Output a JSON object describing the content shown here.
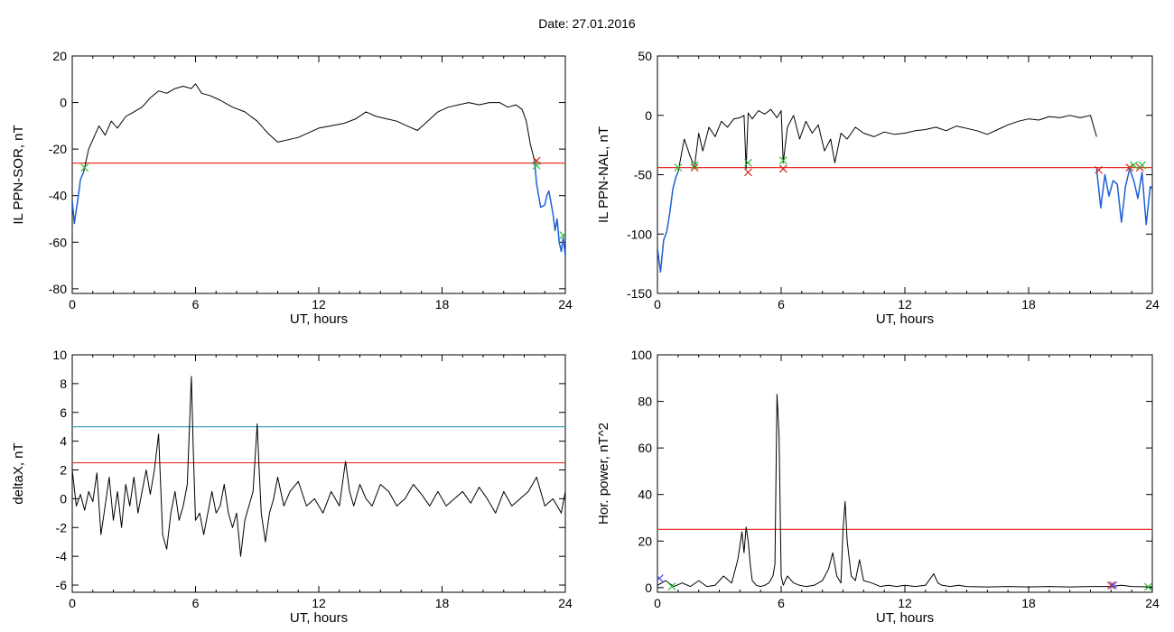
{
  "header": {
    "date_label": "Date:  27.01.2016"
  },
  "colors": {
    "trace": "#000000",
    "red_line": "#e8322a",
    "cyan_line": "#2a9bb0",
    "blue_trace": "#1f5fd6",
    "green_marker": "#2bbf3a",
    "red_marker": "#d4221c",
    "blue_marker": "#4a4ae8"
  },
  "chart_data": [
    {
      "type": "line",
      "ylabel": "IL PPN-SOR, nT",
      "xlabel": "UT, hours",
      "xlim": [
        0,
        24
      ],
      "ylim": [
        -82,
        20
      ],
      "xticks": [
        0,
        6,
        12,
        18,
        24
      ],
      "yticks": [
        20,
        0,
        -20,
        -40,
        -60,
        -80
      ],
      "hlines": [
        {
          "y": -26,
          "color": "red"
        }
      ],
      "series": [
        {
          "color": "black",
          "x": [
            0.55,
            0.8,
            1.0,
            1.3,
            1.6,
            1.9,
            2.2,
            2.6,
            3.0,
            3.4,
            3.8,
            4.2,
            4.6,
            5.0,
            5.4,
            5.8,
            6.0,
            6.3,
            6.7,
            7.2,
            7.8,
            8.4,
            9.0,
            9.5,
            10.0,
            10.5,
            11.0,
            11.5,
            12.0,
            12.6,
            13.2,
            13.8,
            14.3,
            14.8,
            15.3,
            15.8,
            16.3,
            16.8,
            17.3,
            17.8,
            18.3,
            18.8,
            19.3,
            19.8,
            20.3,
            20.8,
            21.2,
            21.6,
            21.9,
            22.1,
            22.3,
            22.5
          ],
          "y": [
            -30,
            -20,
            -16,
            -10,
            -14,
            -8,
            -11,
            -6,
            -4,
            -2,
            2,
            5,
            4,
            6,
            7,
            6,
            8,
            4,
            3,
            1,
            -2,
            -4,
            -8,
            -13,
            -17,
            -16,
            -15,
            -13,
            -11,
            -10,
            -9,
            -7,
            -4,
            -6,
            -7,
            -8,
            -10,
            -12,
            -8,
            -4,
            -2,
            -1,
            0,
            -1,
            0,
            0,
            -2,
            -1,
            -3,
            -8,
            -18,
            -25
          ]
        },
        {
          "color": "blue",
          "x": [
            0,
            0.1,
            0.2,
            0.3,
            0.4,
            0.5,
            0.55
          ],
          "y": [
            -42,
            -52,
            -46,
            -40,
            -33,
            -31,
            -30
          ]
        },
        {
          "color": "blue",
          "x": [
            22.5,
            22.6,
            22.8,
            23.0,
            23.1,
            23.2,
            23.3,
            23.4,
            23.5,
            23.6,
            23.7,
            23.8,
            23.9,
            24.0
          ],
          "y": [
            -25,
            -35,
            -45,
            -44,
            -40,
            -38,
            -43,
            -48,
            -55,
            -50,
            -60,
            -64,
            -58,
            -66
          ]
        }
      ],
      "markers": [
        {
          "x": 0.6,
          "y": -28,
          "symbol": "x",
          "color": "green"
        },
        {
          "x": 22.6,
          "y": -25,
          "symbol": "x",
          "color": "red"
        },
        {
          "x": 22.6,
          "y": -27,
          "symbol": "x",
          "color": "green"
        },
        {
          "x": 23.9,
          "y": -57,
          "symbol": "x",
          "color": "green"
        }
      ]
    },
    {
      "type": "line",
      "ylabel": "IL PPN-NAL, nT",
      "xlabel": "UT, hours",
      "xlim": [
        0,
        24
      ],
      "ylim": [
        -150,
        50
      ],
      "xticks": [
        0,
        6,
        12,
        18,
        24
      ],
      "yticks": [
        50,
        0,
        -50,
        -100,
        -150
      ],
      "hlines": [
        {
          "y": -44,
          "color": "red"
        }
      ],
      "series": [
        {
          "color": "black",
          "x": [
            1.0,
            1.3,
            1.6,
            1.8,
            2.0,
            2.2,
            2.5,
            2.8,
            3.1,
            3.4,
            3.7,
            4.0,
            4.2,
            4.3,
            4.4,
            4.6,
            4.9,
            5.2,
            5.5,
            5.8,
            6.0,
            6.1,
            6.3,
            6.6,
            6.9,
            7.2,
            7.5,
            7.8,
            8.1,
            8.4,
            8.6,
            8.9,
            9.2,
            9.6,
            10.0,
            10.5,
            11.0,
            11.5,
            12.0,
            12.5,
            13.0,
            13.5,
            14.0,
            14.5,
            15.0,
            15.5,
            16.0,
            16.5,
            17.0,
            17.5,
            18.0,
            18.5,
            19.0,
            19.5,
            20.0,
            20.5,
            21.0,
            21.3
          ],
          "y": [
            -48,
            -20,
            -35,
            -43,
            -15,
            -30,
            -10,
            -18,
            -5,
            -10,
            -3,
            -2,
            0,
            -45,
            2,
            -3,
            4,
            1,
            5,
            -2,
            4,
            -40,
            -10,
            0,
            -20,
            -5,
            -15,
            -8,
            -30,
            -20,
            -40,
            -15,
            -20,
            -10,
            -15,
            -18,
            -14,
            -16,
            -15,
            -13,
            -12,
            -10,
            -13,
            -9,
            -11,
            -13,
            -16,
            -12,
            -8,
            -5,
            -3,
            -4,
            -1,
            -2,
            0,
            -2,
            0,
            -18
          ]
        },
        {
          "color": "blue",
          "x": [
            0,
            0.15,
            0.3,
            0.45,
            0.6,
            0.75,
            0.9,
            1.0
          ],
          "y": [
            -112,
            -132,
            -105,
            -98,
            -82,
            -62,
            -52,
            -48
          ]
        },
        {
          "color": "blue",
          "x": [
            21.3,
            21.5,
            21.7,
            21.9,
            22.1,
            22.3,
            22.5,
            22.7,
            22.9,
            23.1,
            23.3,
            23.5,
            23.7,
            23.9,
            24.0
          ],
          "y": [
            -45,
            -78,
            -50,
            -68,
            -55,
            -58,
            -90,
            -60,
            -45,
            -55,
            -70,
            -48,
            -92,
            -60,
            -62
          ]
        }
      ],
      "markers": [
        {
          "x": 1.0,
          "y": -44,
          "symbol": "x",
          "color": "green"
        },
        {
          "x": 1.8,
          "y": -44,
          "symbol": "x",
          "color": "red"
        },
        {
          "x": 1.8,
          "y": -42,
          "symbol": "x",
          "color": "green"
        },
        {
          "x": 4.4,
          "y": -48,
          "symbol": "x",
          "color": "red"
        },
        {
          "x": 4.4,
          "y": -40,
          "symbol": "x",
          "color": "green"
        },
        {
          "x": 6.1,
          "y": -45,
          "symbol": "x",
          "color": "red"
        },
        {
          "x": 6.1,
          "y": -38,
          "symbol": "x",
          "color": "green"
        },
        {
          "x": 21.4,
          "y": -46,
          "symbol": "x",
          "color": "red"
        },
        {
          "x": 22.9,
          "y": -44,
          "symbol": "x",
          "color": "red"
        },
        {
          "x": 23.1,
          "y": -42,
          "symbol": "x",
          "color": "green"
        },
        {
          "x": 23.4,
          "y": -44,
          "symbol": "x",
          "color": "red"
        },
        {
          "x": 23.5,
          "y": -42,
          "symbol": "x",
          "color": "green"
        }
      ]
    },
    {
      "type": "line",
      "ylabel": "deltaX, nT",
      "xlabel": "UT, hours",
      "xlim": [
        0,
        24
      ],
      "ylim": [
        -6.5,
        10
      ],
      "xticks": [
        0,
        6,
        12,
        18,
        24
      ],
      "yticks": [
        10,
        8,
        6,
        4,
        2,
        0,
        -2,
        -4,
        -6
      ],
      "hlines": [
        {
          "y": 5,
          "color": "cyan"
        },
        {
          "y": 2.5,
          "color": "red"
        }
      ],
      "series": [
        {
          "color": "black",
          "x": [
            0,
            0.2,
            0.4,
            0.6,
            0.8,
            1.0,
            1.2,
            1.4,
            1.6,
            1.8,
            2.0,
            2.2,
            2.4,
            2.6,
            2.8,
            3.0,
            3.2,
            3.4,
            3.6,
            3.8,
            4.0,
            4.2,
            4.4,
            4.6,
            4.8,
            5.0,
            5.2,
            5.4,
            5.6,
            5.8,
            5.9,
            6.0,
            6.2,
            6.4,
            6.6,
            6.8,
            7.0,
            7.2,
            7.4,
            7.6,
            7.8,
            8.0,
            8.2,
            8.4,
            8.6,
            8.8,
            9.0,
            9.1,
            9.2,
            9.4,
            9.6,
            9.8,
            10.0,
            10.3,
            10.6,
            11.0,
            11.4,
            11.8,
            12.2,
            12.6,
            13.0,
            13.3,
            13.5,
            13.7,
            14.0,
            14.3,
            14.6,
            15.0,
            15.4,
            15.8,
            16.2,
            16.6,
            17.0,
            17.4,
            17.8,
            18.2,
            18.6,
            19.0,
            19.4,
            19.8,
            20.2,
            20.6,
            21.0,
            21.4,
            21.8,
            22.2,
            22.6,
            23.0,
            23.4,
            23.8,
            24.0
          ],
          "y": [
            2,
            -0.5,
            0.3,
            -0.8,
            0.5,
            -0.2,
            1.8,
            -2.5,
            -0.5,
            1.5,
            -1.5,
            0.5,
            -2,
            1,
            -0.5,
            1.5,
            -1,
            0.5,
            2,
            0.3,
            2,
            4.5,
            -2.5,
            -3.5,
            -1,
            0.5,
            -1.5,
            -0.5,
            1,
            8.5,
            3,
            -1.5,
            -1,
            -2.5,
            -1,
            0.5,
            -1,
            -0.5,
            1,
            -1,
            -2,
            -1,
            -4,
            -1.5,
            -0.5,
            0.5,
            5.2,
            2,
            -1,
            -3,
            -1,
            0,
            1.5,
            -0.5,
            0.5,
            1.2,
            -0.5,
            0,
            -1,
            0.5,
            -0.5,
            2.6,
            0.5,
            -0.5,
            1,
            0,
            -0.5,
            1,
            0.5,
            -0.5,
            0,
            1,
            0.3,
            -0.5,
            0.5,
            -0.5,
            0,
            0.5,
            -0.3,
            0.8,
            0,
            -1,
            0.5,
            -0.5,
            0,
            0.5,
            1.5,
            -0.5,
            0,
            -1,
            0.5
          ]
        }
      ],
      "markers": []
    },
    {
      "type": "line",
      "ylabel": "Hor. power, nT^2",
      "xlabel": "UT, hours",
      "xlim": [
        0,
        24
      ],
      "ylim": [
        -2,
        100
      ],
      "xticks": [
        0,
        6,
        12,
        18,
        24
      ],
      "yticks": [
        100,
        80,
        60,
        40,
        20,
        0
      ],
      "hlines": [
        {
          "y": 25,
          "color": "red"
        }
      ],
      "series": [
        {
          "color": "black",
          "x": [
            0,
            0.4,
            0.8,
            1.2,
            1.6,
            2.0,
            2.4,
            2.8,
            3.2,
            3.6,
            3.9,
            4.1,
            4.2,
            4.3,
            4.4,
            4.5,
            4.6,
            4.8,
            5.0,
            5.2,
            5.4,
            5.6,
            5.7,
            5.8,
            5.9,
            6.0,
            6.1,
            6.3,
            6.6,
            6.9,
            7.2,
            7.6,
            8.0,
            8.3,
            8.5,
            8.7,
            8.9,
            9.0,
            9.1,
            9.2,
            9.4,
            9.6,
            9.8,
            10.0,
            10.4,
            10.8,
            11.2,
            11.6,
            12.0,
            12.5,
            13.0,
            13.4,
            13.6,
            13.8,
            14.2,
            14.6,
            15.0,
            16.0,
            17.0,
            18.0,
            19.0,
            20.0,
            21.0,
            22.0,
            22.5,
            23.0,
            24.0
          ],
          "y": [
            1,
            3,
            0.5,
            2,
            0.5,
            3,
            0.5,
            1,
            5,
            2,
            12,
            24,
            15,
            26,
            20,
            10,
            3,
            1,
            0.5,
            1,
            2,
            5,
            10,
            83,
            65,
            5,
            1,
            5,
            2,
            1,
            0.5,
            1,
            3,
            8,
            15,
            5,
            2,
            25,
            37,
            20,
            5,
            3,
            12,
            3,
            2,
            0.5,
            1,
            0.5,
            1,
            0.5,
            1,
            6,
            2,
            1,
            0.5,
            1,
            0.5,
            0.3,
            0.5,
            0.3,
            0.5,
            0.3,
            0.5,
            0.5,
            1,
            0.5,
            0.3
          ]
        }
      ],
      "markers": [
        {
          "x": 0.1,
          "y": 4,
          "symbol": "x",
          "color": "blue"
        },
        {
          "x": 0.7,
          "y": 0.5,
          "symbol": "x",
          "color": "green"
        },
        {
          "x": 22.0,
          "y": 1,
          "symbol": "x",
          "color": "red"
        },
        {
          "x": 22.1,
          "y": 1,
          "symbol": "x",
          "color": "blue"
        },
        {
          "x": 23.8,
          "y": 0.3,
          "symbol": "x",
          "color": "green"
        }
      ]
    }
  ]
}
